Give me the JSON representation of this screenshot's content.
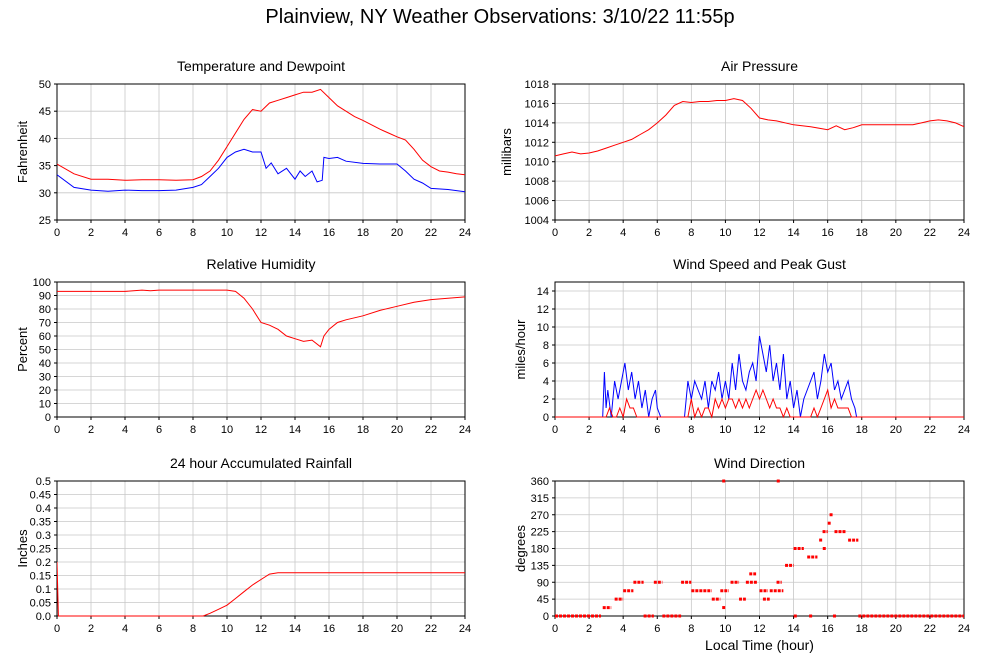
{
  "page": {
    "title": "Plainview, NY Weather Observations: 3/10/22 11:55p"
  },
  "chart_data": [
    {
      "id": "temp",
      "type": "line",
      "title": "Temperature and Dewpoint",
      "xlabel": "",
      "ylabel": "Fahrenheit",
      "xlim": [
        0,
        24
      ],
      "ylim": [
        25,
        50
      ],
      "xticks": [
        0,
        2,
        4,
        6,
        8,
        10,
        12,
        14,
        16,
        18,
        20,
        22,
        24
      ],
      "yticks": [
        25,
        30,
        35,
        40,
        45,
        50
      ],
      "grid": true,
      "series": [
        {
          "color": "#ff0000",
          "style": "line",
          "x": [
            0,
            1,
            2,
            3,
            4,
            5,
            6,
            7,
            8,
            8.5,
            9,
            9.5,
            10,
            10.5,
            11,
            11.5,
            12,
            12.5,
            13,
            13.5,
            14,
            14.5,
            15,
            15.5,
            16,
            16.5,
            17,
            17.5,
            18,
            18.5,
            19,
            19.5,
            20,
            20.5,
            21,
            21.5,
            22,
            22.5,
            23,
            23.5,
            24
          ],
          "y": [
            35.3,
            33.5,
            32.5,
            32.5,
            32.3,
            32.4,
            32.4,
            32.3,
            32.4,
            33,
            34,
            36,
            38.5,
            41,
            43.5,
            45.3,
            45,
            46.5,
            47,
            47.5,
            48,
            48.5,
            48.5,
            49,
            47.5,
            46,
            45,
            44,
            43.3,
            42.5,
            41.7,
            41,
            40.3,
            39.7,
            38,
            36,
            34.8,
            34,
            33.8,
            33.5,
            33.3
          ]
        },
        {
          "color": "#0000ff",
          "style": "line",
          "x": [
            0,
            1,
            2,
            3,
            4,
            5,
            6,
            7,
            8,
            8.5,
            9,
            9.5,
            10,
            10.5,
            11,
            11.5,
            12,
            12.3,
            12.6,
            13,
            13.5,
            14,
            14.3,
            14.6,
            15,
            15.3,
            15.6,
            15.7,
            16,
            16.5,
            17,
            18,
            19,
            20,
            20.5,
            21,
            21.5,
            22,
            23,
            24
          ],
          "y": [
            33.3,
            31,
            30.5,
            30.3,
            30.5,
            30.4,
            30.4,
            30.5,
            31,
            31.5,
            33,
            34.5,
            36.5,
            37.5,
            38,
            37.5,
            37.5,
            34.5,
            35.5,
            33.5,
            34.5,
            32.5,
            34,
            33,
            34,
            32,
            32.3,
            36.5,
            36.3,
            36.5,
            35.8,
            35.4,
            35.3,
            35.3,
            34,
            32.5,
            31.8,
            30.8,
            30.6,
            30.2
          ]
        }
      ]
    },
    {
      "id": "pressure",
      "type": "line",
      "title": "Air Pressure",
      "xlabel": "",
      "ylabel": "millibars",
      "xlim": [
        0,
        24
      ],
      "ylim": [
        1004,
        1018
      ],
      "xticks": [
        0,
        2,
        4,
        6,
        8,
        10,
        12,
        14,
        16,
        18,
        20,
        22,
        24
      ],
      "yticks": [
        1004,
        1006,
        1008,
        1010,
        1012,
        1014,
        1016,
        1018
      ],
      "grid": true,
      "series": [
        {
          "color": "#ff0000",
          "style": "line",
          "x": [
            0,
            0.5,
            1,
            1.5,
            2,
            2.5,
            3,
            3.5,
            4,
            4.5,
            5,
            5.5,
            6,
            6.5,
            7,
            7.5,
            8,
            8.5,
            9,
            9.5,
            10,
            10.5,
            11,
            11.5,
            12,
            12.5,
            13,
            14,
            15,
            16,
            16.5,
            17,
            17.5,
            18,
            19,
            20,
            21,
            21.5,
            22,
            22.5,
            23,
            23.5,
            24
          ],
          "y": [
            1010.6,
            1010.8,
            1011,
            1010.8,
            1010.9,
            1011.1,
            1011.4,
            1011.7,
            1012,
            1012.3,
            1012.8,
            1013.3,
            1014,
            1014.8,
            1015.8,
            1016.2,
            1016.1,
            1016.2,
            1016.2,
            1016.3,
            1016.3,
            1016.5,
            1016.3,
            1015.5,
            1014.5,
            1014.3,
            1014.2,
            1013.8,
            1013.6,
            1013.3,
            1013.7,
            1013.3,
            1013.5,
            1013.8,
            1013.8,
            1013.8,
            1013.8,
            1014,
            1014.2,
            1014.3,
            1014.2,
            1014,
            1013.6
          ]
        }
      ]
    },
    {
      "id": "humidity",
      "type": "line",
      "title": "Relative Humidity",
      "xlabel": "",
      "ylabel": "Percent",
      "xlim": [
        0,
        24
      ],
      "ylim": [
        0,
        100
      ],
      "xticks": [
        0,
        2,
        4,
        6,
        8,
        10,
        12,
        14,
        16,
        18,
        20,
        22,
        24
      ],
      "yticks": [
        0,
        10,
        20,
        30,
        40,
        50,
        60,
        70,
        80,
        90,
        100
      ],
      "grid": true,
      "series": [
        {
          "color": "#ff0000",
          "style": "line",
          "x": [
            0,
            1,
            2,
            3,
            4,
            4.5,
            5,
            5.5,
            6,
            7,
            8,
            9,
            10,
            10.5,
            11,
            11.5,
            12,
            12.5,
            13,
            13.5,
            14,
            14.5,
            15,
            15.5,
            15.7,
            16,
            16.5,
            17,
            18,
            19,
            20,
            21,
            22,
            23,
            24
          ],
          "y": [
            93,
            93,
            93,
            93,
            93,
            93.5,
            94,
            93.5,
            94,
            94,
            94,
            94,
            94,
            93,
            88,
            80,
            70,
            68,
            65,
            60,
            58,
            56,
            57,
            52,
            60,
            65,
            70,
            72,
            75,
            79,
            82,
            85,
            87,
            88,
            89
          ]
        }
      ]
    },
    {
      "id": "wind",
      "type": "line",
      "title": "Wind Speed and Peak Gust",
      "xlabel": "",
      "ylabel": "miles/hour",
      "xlim": [
        0,
        24
      ],
      "ylim": [
        0,
        15
      ],
      "xticks": [
        0,
        2,
        4,
        6,
        8,
        10,
        12,
        14,
        16,
        18,
        20,
        22,
        24
      ],
      "yticks": [
        0,
        2,
        4,
        6,
        8,
        10,
        12,
        14
      ],
      "grid": true,
      "series": [
        {
          "color": "#0000ff",
          "style": "line",
          "x": [
            0,
            2.8,
            2.9,
            3.0,
            3.1,
            3.3,
            3.5,
            3.7,
            3.9,
            4.1,
            4.3,
            4.5,
            4.7,
            4.9,
            5.1,
            5.3,
            5.5,
            5.7,
            5.9,
            6.0,
            6.2,
            7.6,
            7.8,
            8.0,
            8.2,
            8.4,
            8.6,
            8.8,
            9.0,
            9.2,
            9.4,
            9.6,
            9.8,
            10.0,
            10.2,
            10.4,
            10.6,
            10.8,
            11.0,
            11.2,
            11.4,
            11.6,
            11.8,
            12.0,
            12.2,
            12.4,
            12.6,
            12.8,
            13.0,
            13.2,
            13.4,
            13.6,
            13.8,
            14.0,
            14.2,
            14.4,
            14.6,
            14.8,
            15.0,
            15.2,
            15.4,
            15.6,
            15.8,
            16.0,
            16.2,
            16.4,
            16.6,
            16.8,
            17.0,
            17.2,
            17.4,
            17.6,
            17.7,
            24
          ],
          "y": [
            0,
            0,
            5,
            1,
            3,
            0,
            4,
            2,
            4,
            6,
            3,
            5,
            2,
            4,
            1,
            3,
            0,
            2,
            3,
            1,
            0,
            0,
            4,
            2,
            4,
            3,
            2,
            4,
            1,
            4,
            3,
            5,
            2,
            4,
            2,
            6,
            3,
            7,
            4,
            3,
            5,
            6,
            4,
            9,
            7,
            5,
            8,
            4,
            6,
            3,
            7,
            2,
            4,
            1,
            3,
            0,
            2,
            3,
            4,
            5,
            2,
            4,
            7,
            5,
            6,
            3,
            4,
            2,
            3,
            4,
            2,
            1,
            0,
            0
          ]
        },
        {
          "color": "#ff0000",
          "style": "line",
          "x": [
            0,
            3.0,
            3.2,
            3.4,
            3.6,
            3.8,
            4.0,
            4.2,
            4.4,
            4.6,
            4.8,
            5.0,
            7.8,
            8.0,
            8.2,
            8.4,
            8.6,
            8.8,
            9.0,
            9.2,
            9.4,
            9.6,
            9.8,
            10.0,
            10.2,
            10.4,
            10.6,
            10.8,
            11.0,
            11.2,
            11.4,
            11.6,
            11.8,
            12.0,
            12.2,
            12.4,
            12.6,
            12.8,
            13.0,
            13.2,
            13.4,
            13.6,
            13.8,
            14.0,
            15.0,
            15.2,
            15.4,
            15.6,
            15.8,
            16.0,
            16.2,
            16.4,
            16.6,
            16.8,
            17.0,
            17.2,
            17.4,
            17.6,
            24
          ],
          "y": [
            0,
            0,
            1,
            0,
            0,
            1,
            0,
            2,
            1,
            1,
            0,
            0,
            0,
            2,
            0,
            1,
            0,
            1,
            1,
            0,
            2,
            1,
            2,
            1,
            2,
            2,
            1,
            2,
            1,
            2,
            1,
            2,
            3,
            2,
            3,
            2,
            1,
            2,
            1,
            1,
            0,
            1,
            0,
            0,
            0,
            1,
            0,
            1,
            2,
            3,
            1,
            2,
            1,
            1,
            1,
            1,
            0,
            0,
            0
          ]
        }
      ]
    },
    {
      "id": "rain",
      "type": "line",
      "title": "24 hour Accumulated Rainfall",
      "xlabel": "",
      "ylabel": "Inches",
      "xlim": [
        0,
        24
      ],
      "ylim": [
        0,
        0.5
      ],
      "xticks": [
        0,
        2,
        4,
        6,
        8,
        10,
        12,
        14,
        16,
        18,
        20,
        22,
        24
      ],
      "yticks": [
        0.0,
        0.05,
        0.1,
        0.15,
        0.2,
        0.25,
        0.3,
        0.35,
        0.4,
        0.45,
        0.5
      ],
      "ytick_labels": [
        "0.0",
        "0.05",
        "0.1",
        "0.15",
        "0.2",
        "0.25",
        "0.3",
        "0.35",
        "0.4",
        "0.45",
        "0.5"
      ],
      "grid": true,
      "series": [
        {
          "color": "#ff0000",
          "style": "line",
          "x": [
            0,
            0.08,
            0.2,
            8.6,
            9,
            9.5,
            10,
            10.5,
            11,
            11.5,
            12,
            12.5,
            13,
            14,
            16,
            18,
            20,
            22,
            24
          ],
          "y": [
            0.2,
            0,
            0,
            0,
            0.01,
            0.025,
            0.04,
            0.065,
            0.09,
            0.115,
            0.135,
            0.155,
            0.16,
            0.16,
            0.16,
            0.16,
            0.16,
            0.16,
            0.16
          ]
        }
      ]
    },
    {
      "id": "direction",
      "type": "scatter",
      "title": "Wind Direction",
      "xlabel": "Local Time (hour)",
      "ylabel": "degrees",
      "xlim": [
        0,
        24
      ],
      "ylim": [
        0,
        360
      ],
      "xticks": [
        0,
        2,
        4,
        6,
        8,
        10,
        12,
        14,
        16,
        18,
        20,
        22,
        24
      ],
      "yticks": [
        0,
        45,
        90,
        135,
        180,
        225,
        270,
        315,
        360
      ],
      "grid": true,
      "series": [
        {
          "color": "#ff0000",
          "style": "segments",
          "segments": [
            [
              0,
              2.7,
              0
            ],
            [
              2.8,
              3.3,
              22.5
            ],
            [
              3.5,
              4.0,
              45
            ],
            [
              4.0,
              4.6,
              67.5
            ],
            [
              4.6,
              5.2,
              90
            ],
            [
              5.2,
              5.8,
              0
            ],
            [
              5.8,
              6.3,
              90
            ],
            [
              6.3,
              7.4,
              0
            ],
            [
              7.4,
              8.0,
              90
            ],
            [
              8.0,
              9.2,
              67.5
            ],
            [
              9.2,
              9.7,
              45
            ],
            [
              9.7,
              10.2,
              67.5
            ],
            [
              10.3,
              10.8,
              90
            ],
            [
              10.8,
              11.2,
              45
            ],
            [
              11.2,
              11.9,
              90
            ],
            [
              11.4,
              11.8,
              112.5
            ],
            [
              12.0,
              12.5,
              67.5
            ],
            [
              12.2,
              12.6,
              45
            ],
            [
              12.6,
              13.4,
              67.5
            ],
            [
              13.0,
              13.3,
              90
            ],
            [
              13.5,
              14.0,
              135
            ],
            [
              14.0,
              14.6,
              180
            ],
            [
              14.8,
              15.4,
              157.5
            ],
            [
              15.5,
              15.7,
              202.5
            ],
            [
              15.7,
              16.0,
              225
            ],
            [
              16.0,
              16.2,
              247.5
            ],
            [
              16.4,
              17.1,
              225
            ],
            [
              17.2,
              17.8,
              202.5
            ],
            [
              17.8,
              24,
              0
            ]
          ],
          "points": [
            [
              9.9,
              360
            ],
            [
              13.1,
              360
            ],
            [
              9.9,
              22.5
            ],
            [
              15.0,
              0
            ],
            [
              16.2,
              270
            ],
            [
              15.8,
              180
            ],
            [
              14.1,
              0
            ],
            [
              16.4,
              0
            ]
          ]
        }
      ]
    }
  ]
}
